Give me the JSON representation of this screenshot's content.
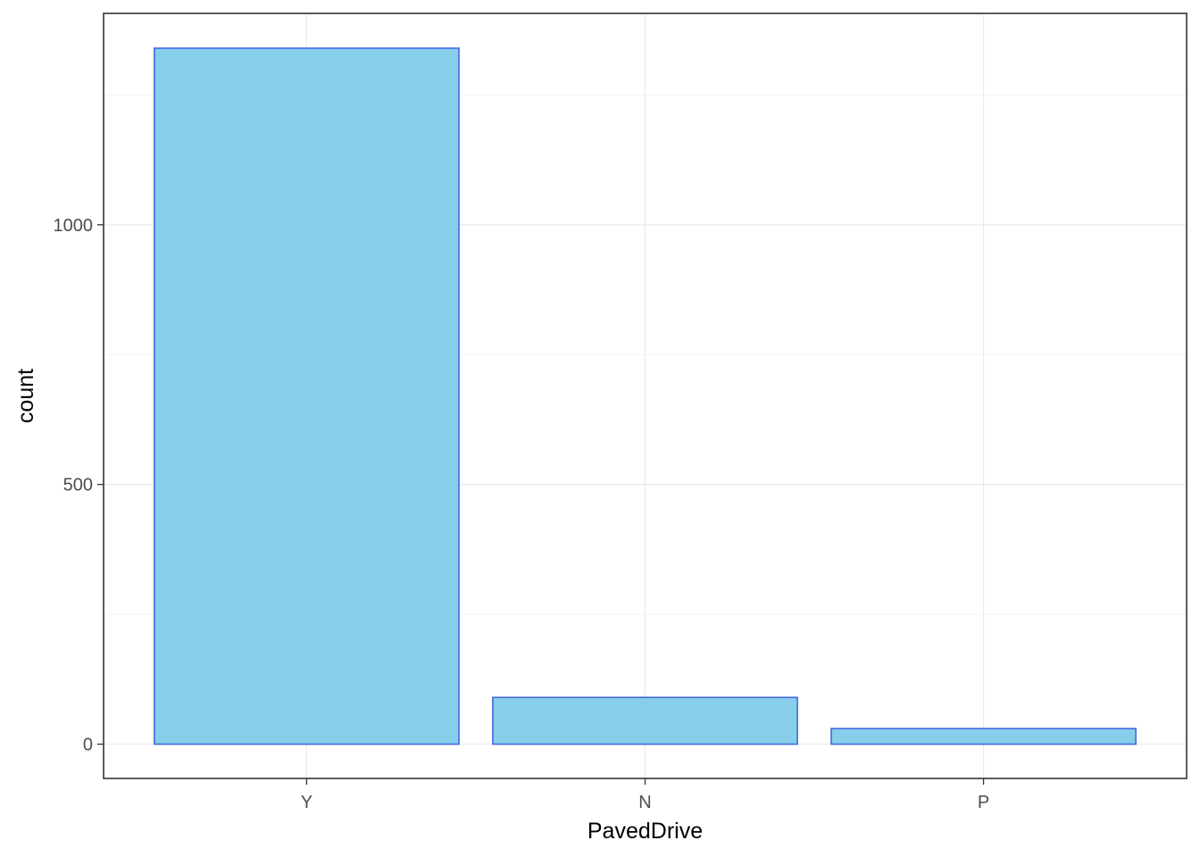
{
  "chart_data": {
    "type": "bar",
    "title": "",
    "xlabel": "PavedDrive",
    "ylabel": "count",
    "categories": [
      "Y",
      "N",
      "P"
    ],
    "values": [
      1340,
      90,
      30
    ],
    "ylim": [
      -66,
      1407
    ],
    "y_ticks": [
      0,
      500,
      1000
    ],
    "y_tick_labels": [
      "0",
      "500",
      "1000"
    ],
    "grid": true,
    "legend": "none",
    "colors": {
      "bar_fill": "#87CEEB",
      "bar_stroke": "#4169E1",
      "grid_major": "#ebebeb",
      "grid_minor": "#f2f2f2",
      "panel_border": "#333333",
      "tick_text": "#4d4d4d"
    }
  }
}
